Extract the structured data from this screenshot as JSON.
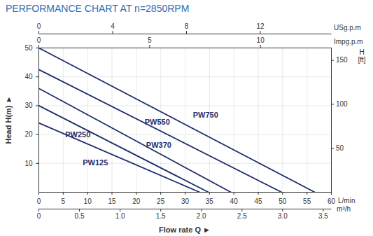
{
  "chart_data": {
    "type": "line",
    "title": "PERFORMANCE CHART AT n=2850RPM",
    "x_label": "L/min",
    "x_title": "Flow rate Q ►",
    "y_label": "Head H(m) ►",
    "y2_label": "H [ft]",
    "xlim": [
      0,
      60
    ],
    "xticks": [
      0,
      5,
      10,
      15,
      20,
      25,
      30,
      35,
      40,
      45,
      50,
      55,
      60
    ],
    "ylim": [
      0,
      50
    ],
    "yticks": [
      10,
      20,
      30,
      40,
      50
    ],
    "y2lim": [
      0,
      164.04
    ],
    "y2ticks": [
      50,
      100,
      150
    ],
    "grid": true,
    "top_axes": [
      {
        "label": "USg.p.m",
        "lim": [
          0,
          15.85
        ],
        "ticks": [
          0,
          4,
          8,
          12
        ]
      },
      {
        "label": "Impg.p.m",
        "lim": [
          0,
          13.2
        ],
        "ticks": [
          0,
          5,
          10
        ]
      }
    ],
    "bottom_axis": {
      "label": "m³/h",
      "lim": [
        0,
        3.6
      ],
      "ticks": [
        0,
        0.5,
        {
          "value": 1,
          "label": "1.0"
        },
        1.5,
        {
          "value": 2,
          "label": "2.0"
        },
        2.5,
        {
          "value": 3,
          "label": "3.0"
        },
        3.5
      ]
    },
    "series": [
      {
        "name": "PW750",
        "color": "#1f2f6e",
        "x": [
          0,
          56.6
        ],
        "values": [
          50,
          0
        ]
      },
      {
        "name": "PW550",
        "color": "#1f2f6e",
        "x": [
          0,
          49.8
        ],
        "values": [
          42.5,
          0
        ]
      },
      {
        "name": "PW370",
        "color": "#1f2f6e",
        "x": [
          0,
          39.4
        ],
        "values": [
          36,
          0
        ]
      },
      {
        "name": "PW250",
        "color": "#1f2f6e",
        "x": [
          0,
          34.8
        ],
        "values": [
          30,
          0
        ]
      },
      {
        "name": "PW125",
        "color": "#1f2f6e",
        "x": [
          0,
          33
        ],
        "values": [
          24,
          0
        ]
      }
    ],
    "annotations": [
      {
        "text": "PW750",
        "x": 34.2,
        "y": 26.6
      },
      {
        "text": "PW550",
        "x": 24.3,
        "y": 24.4
      },
      {
        "text": "PW370",
        "x": 24.6,
        "y": 16.3
      },
      {
        "text": "PW250",
        "x": 8,
        "y": 20
      },
      {
        "text": "PW125",
        "x": 11.6,
        "y": 10.2
      }
    ]
  }
}
